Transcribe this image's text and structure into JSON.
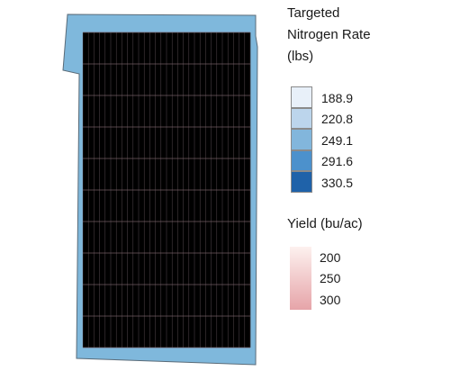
{
  "nitrogen_legend": {
    "title_lines": [
      "Targeted",
      "Nitrogen Rate",
      "(lbs)"
    ],
    "classes": [
      {
        "label": "188.9",
        "color": "#e8f0f9"
      },
      {
        "label": "220.8",
        "color": "#bcd5ec"
      },
      {
        "label": "249.1",
        "color": "#82b6dc"
      },
      {
        "label": "291.6",
        "color": "#4c91cc"
      },
      {
        "label": "330.5",
        "color": "#1f62a9"
      }
    ]
  },
  "yield_legend": {
    "title": "Yield (bu/ac)",
    "labels": [
      "200",
      "250",
      "300"
    ],
    "color_low": "#fdf1ef",
    "color_high": "#e6a4a9"
  },
  "map": {
    "field_border_color": "#7fb8dc",
    "plot_colors": {
      "yield_low": "#f1c9c6",
      "yield_high": "#cf8f98",
      "nitrogen_tint": "#5e5f99"
    },
    "strip_rate_sequence": [
      1,
      4,
      0,
      2,
      3,
      1,
      4,
      2,
      0,
      3,
      2,
      1,
      4,
      0,
      3,
      2,
      1,
      4,
      3,
      0,
      2,
      4,
      1,
      3,
      0,
      2,
      4,
      1,
      3,
      2,
      0,
      4,
      1,
      3,
      2,
      0,
      4,
      3,
      1,
      2,
      0,
      4,
      2,
      1,
      3,
      0,
      4,
      2
    ]
  }
}
